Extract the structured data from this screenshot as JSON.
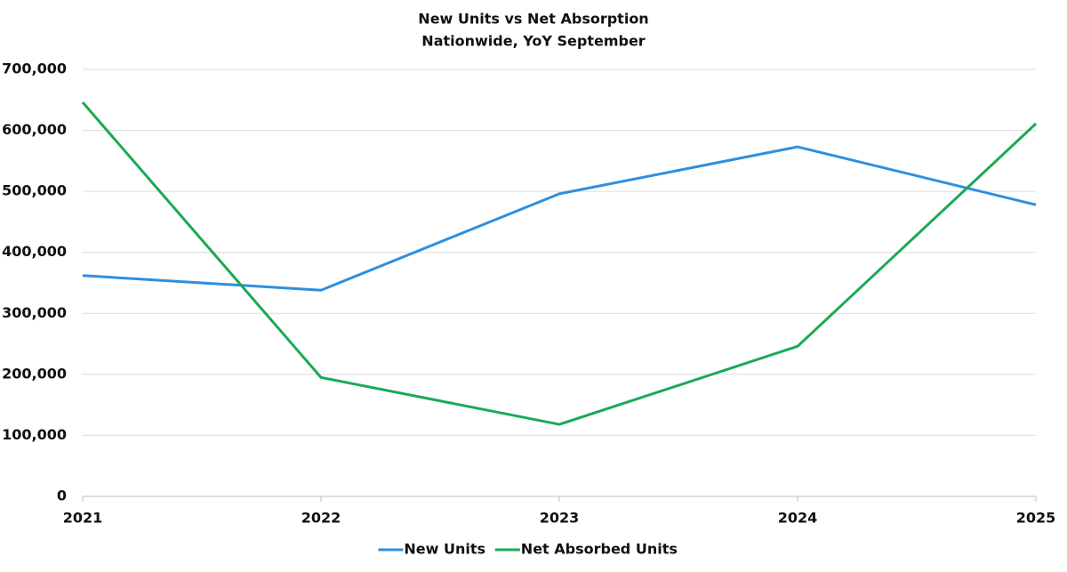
{
  "chart_data": {
    "type": "line",
    "title": "New Units vs Net Absorption",
    "subtitle": "Nationwide, YoY September",
    "x": [
      2021,
      2022,
      2023,
      2024,
      2025
    ],
    "xlim": [
      2021,
      2025
    ],
    "xticks": [
      2021,
      2022,
      2023,
      2024,
      2025
    ],
    "ylim": [
      0,
      700000
    ],
    "yticks": [
      0,
      {
        "value": 100000,
        "label": "100,000"
      },
      {
        "value": 200000,
        "label": "200,000"
      },
      {
        "value": 300000,
        "label": "300,000"
      },
      {
        "value": 400000,
        "label": "400,000"
      },
      {
        "value": 500000,
        "label": "500,000"
      },
      {
        "value": 600000,
        "label": "600,000"
      },
      {
        "value": 700000,
        "label": "700,000"
      }
    ],
    "grid": true,
    "legend": "bottom",
    "series": [
      {
        "name": "New Units",
        "color": "#2e8fdf",
        "values": [
          362000,
          338000,
          496000,
          573000,
          478000
        ]
      },
      {
        "name": "Net Absorbed Units",
        "color": "#1aaa55",
        "values": [
          646000,
          195000,
          118000,
          246000,
          611000
        ]
      }
    ]
  }
}
